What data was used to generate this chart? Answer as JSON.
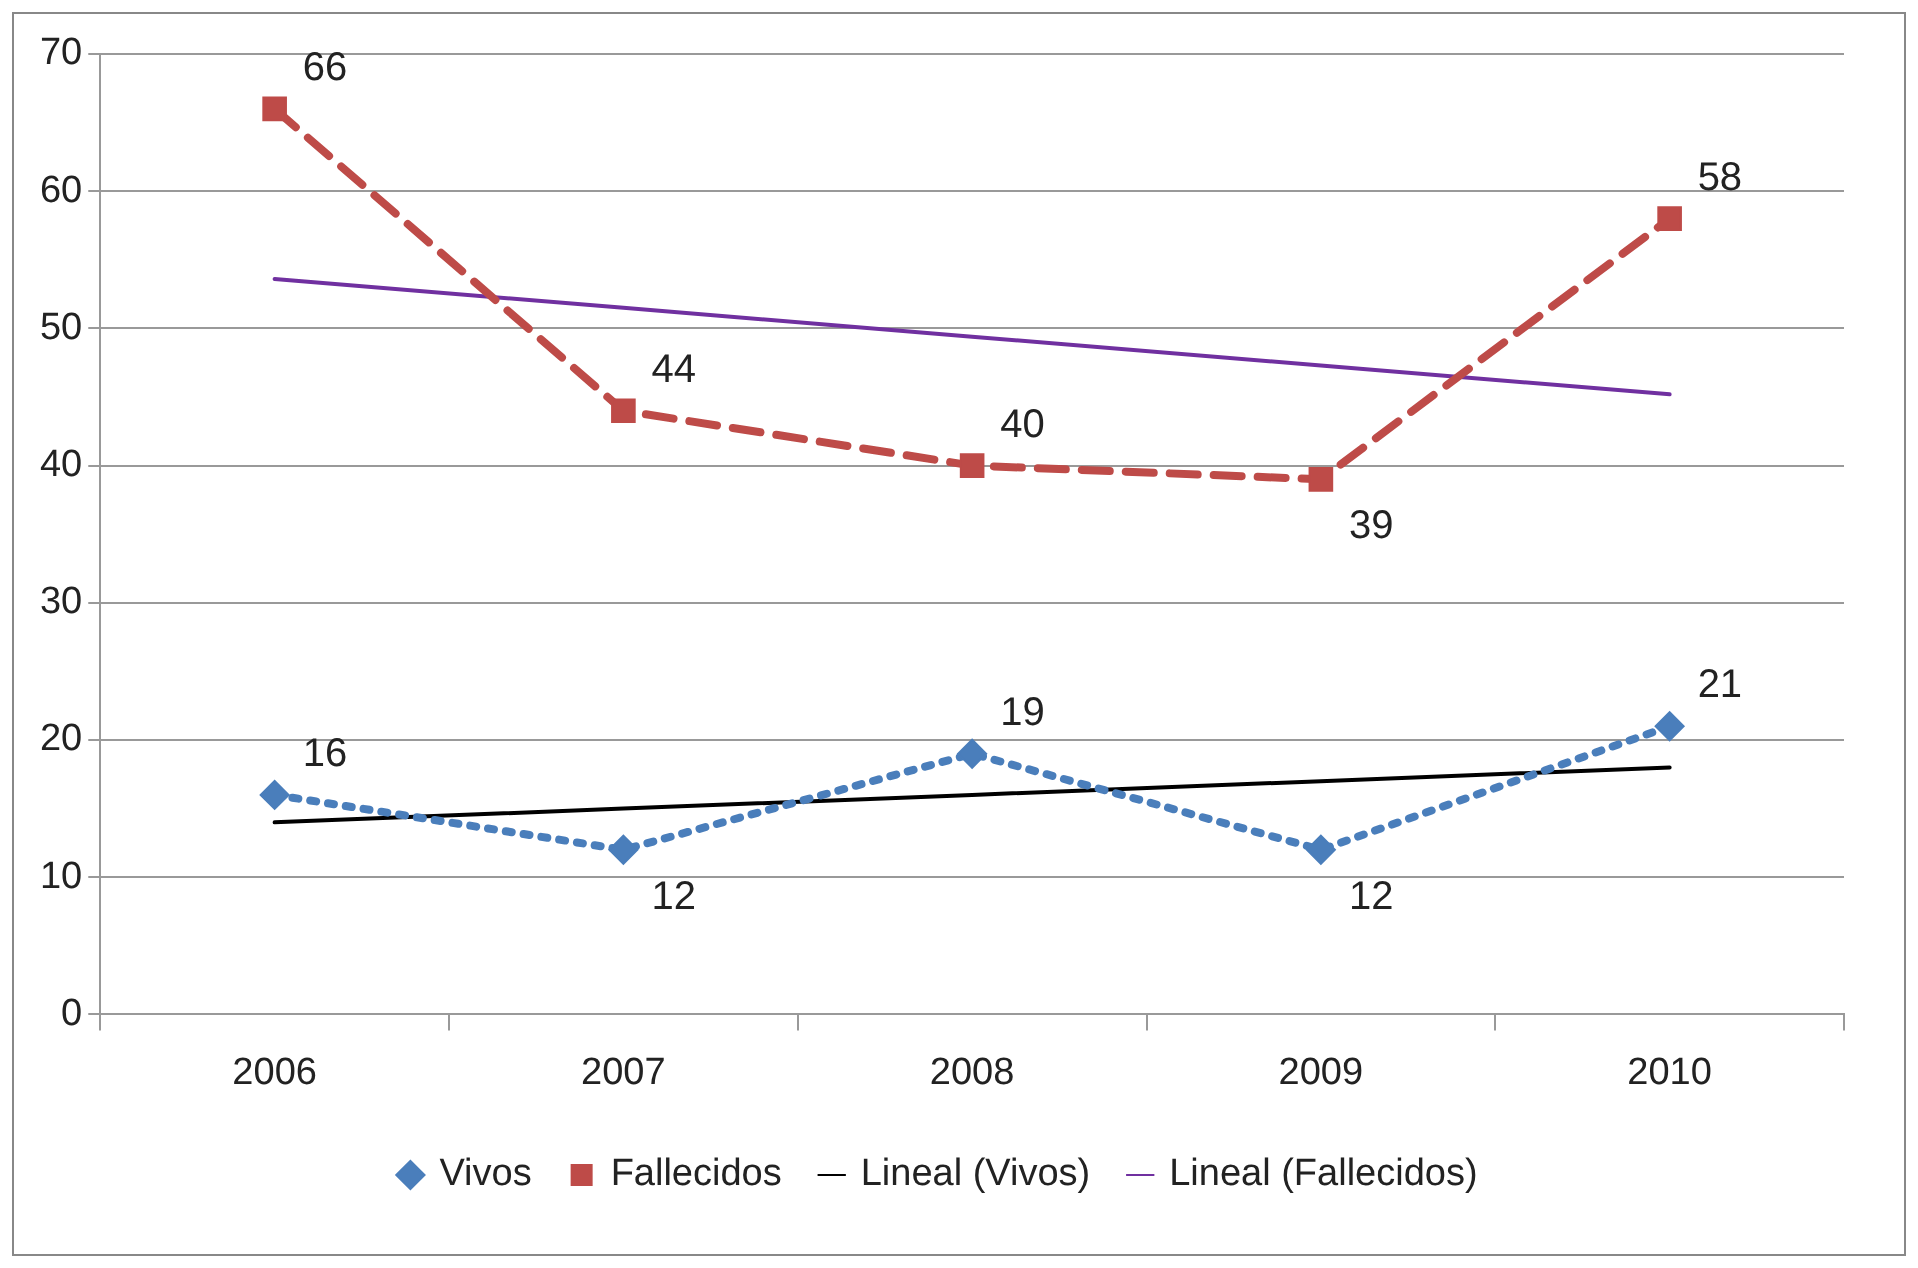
{
  "chart_data": {
    "type": "line",
    "categories": [
      "2006",
      "2007",
      "2008",
      "2009",
      "2010"
    ],
    "series": [
      {
        "name": "Vivos",
        "color": "#4a7ebb",
        "values": [
          16,
          12,
          19,
          12,
          21
        ],
        "marker": "diamond",
        "line_style": "dotted",
        "value_labels": [
          "16",
          "12",
          "19",
          "12",
          "21"
        ]
      },
      {
        "name": "Fallecidos",
        "color": "#be4b48",
        "values": [
          66,
          44,
          40,
          39,
          58
        ],
        "marker": "square",
        "line_style": "dashed",
        "value_labels": [
          "66",
          "44",
          "40",
          "39",
          "58"
        ]
      },
      {
        "name": "Lineal (Vivos)",
        "color": "#000000",
        "values": [
          14,
          15,
          16,
          17,
          18
        ],
        "marker": "none",
        "line_style": "solid"
      },
      {
        "name": "Lineal (Fallecidos)",
        "color": "#7030a0",
        "values": [
          53.6,
          51.5,
          49.4,
          47.3,
          45.2
        ],
        "marker": "none",
        "line_style": "solid"
      }
    ],
    "ylim": [
      0,
      70
    ],
    "yticks": [
      0,
      10,
      20,
      30,
      40,
      50,
      60,
      70
    ],
    "grid": "y",
    "legend": "bottom"
  }
}
